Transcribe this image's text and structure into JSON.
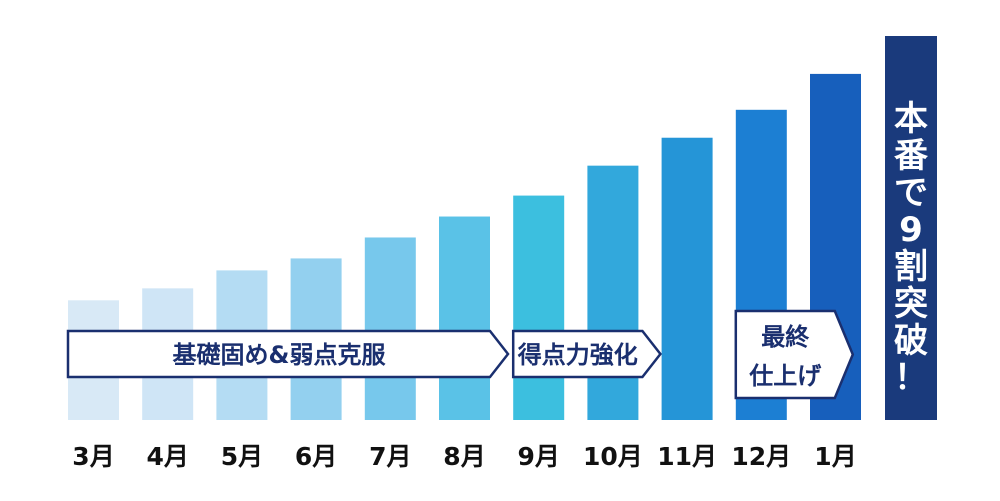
{
  "chart_data": {
    "type": "bar",
    "title": "",
    "xlabel": "",
    "ylabel": "",
    "categories": [
      "3月",
      "4月",
      "5月",
      "6月",
      "7月",
      "8月",
      "9月",
      "10月",
      "11月",
      "12月",
      "1月"
    ],
    "values": [
      120,
      132,
      150,
      162,
      183,
      204,
      225,
      255,
      283,
      311,
      347
    ],
    "ylim": [
      0,
      385
    ],
    "bar_colors": [
      "#d8e9f6",
      "#cfe5f6",
      "#b4dcf3",
      "#93d0ef",
      "#77c8ec",
      "#5ac2e7",
      "#3cbfdf",
      "#32a8dc",
      "#2595d7",
      "#1c7fd3",
      "#175fbc"
    ],
    "final_bar": {
      "value": 385,
      "label": "本番で9割突破！",
      "color": "#1a3a7c"
    },
    "phases": [
      {
        "label": "基礎固め&弱点克服",
        "from": "3月",
        "to": "8月"
      },
      {
        "label": "得点力強化",
        "from": "9月",
        "to": "10月"
      },
      {
        "label_line1": "最終",
        "label_line2": "仕上げ",
        "from": "12月",
        "to": "12月"
      }
    ]
  }
}
